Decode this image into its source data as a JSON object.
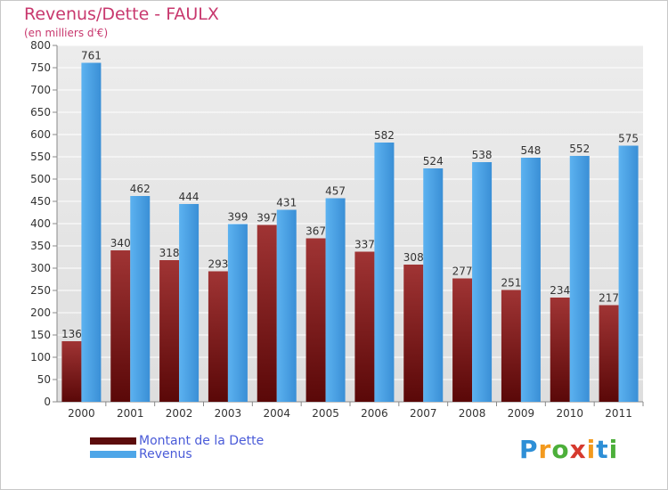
{
  "header": {
    "title": "Revenus/Dette - FAULX",
    "subtitle": "(en milliers d'€)"
  },
  "chart_data": {
    "type": "bar",
    "categories": [
      "2000",
      "2001",
      "2002",
      "2003",
      "2004",
      "2005",
      "2006",
      "2007",
      "2008",
      "2009",
      "2010",
      "2011"
    ],
    "series": [
      {
        "name": "Montant de la Dette",
        "color": "#7a1a1a",
        "values": [
          136,
          340,
          318,
          293,
          397,
          367,
          337,
          308,
          277,
          251,
          234,
          217
        ]
      },
      {
        "name": "Revenus",
        "color": "#4ea6e8",
        "values": [
          761,
          462,
          444,
          399,
          431,
          457,
          582,
          524,
          538,
          548,
          552,
          575
        ]
      }
    ],
    "ylim": [
      0,
      800
    ],
    "yticks": [
      0,
      50,
      100,
      150,
      200,
      250,
      300,
      350,
      400,
      450,
      500,
      550,
      600,
      650,
      700,
      750,
      800
    ],
    "grid": true,
    "legend_position": "bottom-left"
  },
  "legend": {
    "items": [
      {
        "label": "Montant de la Dette",
        "color": "#5c0c0c"
      },
      {
        "label": "Revenus",
        "color": "#4ea6e8"
      }
    ]
  },
  "logo": {
    "letters": [
      "P",
      "r",
      "o",
      "x",
      "i",
      "t",
      "i"
    ],
    "colors": [
      "#2e8fd6",
      "#f39a1e",
      "#4caf3a",
      "#d63a2e",
      "#f39a1e",
      "#2e8fd6",
      "#4caf3a"
    ]
  }
}
